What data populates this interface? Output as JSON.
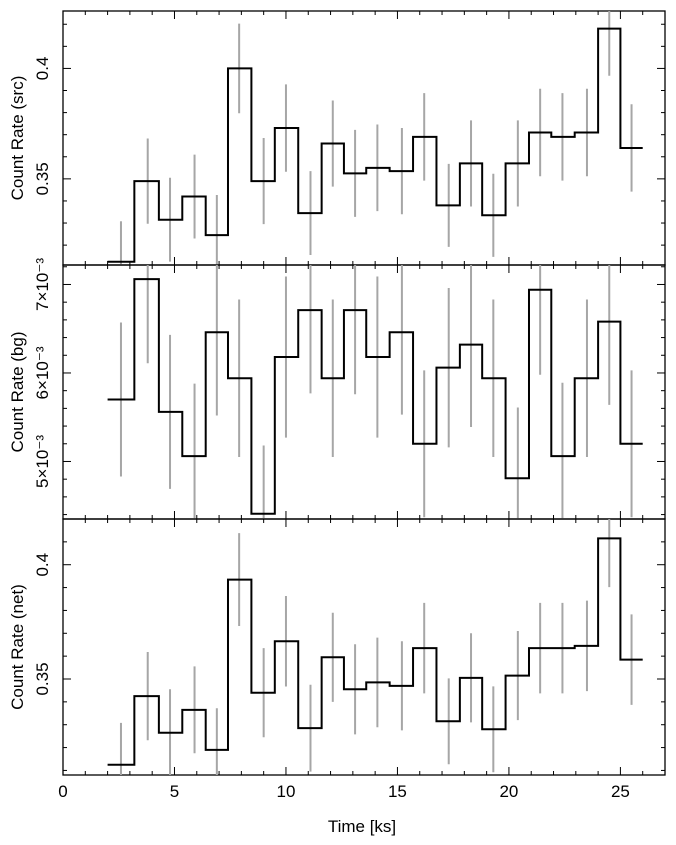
{
  "chart_data": [
    {
      "type": "line",
      "style": "step",
      "ylabel": "Count Rate (src)",
      "xlim": [
        0,
        27
      ],
      "ylim": [
        0.311,
        0.426
      ],
      "yticks": [
        0.35,
        0.4
      ],
      "ytick_labels": [
        "0.35",
        "0.4"
      ],
      "x": [
        2.6,
        3.8,
        4.8,
        5.9,
        6.9,
        7.9,
        9.0,
        10.0,
        11.1,
        12.1,
        13.1,
        14.1,
        15.2,
        16.2,
        17.3,
        18.3,
        19.3,
        20.4,
        21.4,
        22.4,
        23.5,
        24.5,
        25.5
      ],
      "values": [
        0.3125,
        0.349,
        0.3315,
        0.342,
        0.3245,
        0.4,
        0.349,
        0.373,
        0.3345,
        0.366,
        0.3525,
        0.355,
        0.3535,
        0.369,
        0.338,
        0.357,
        0.3335,
        0.357,
        0.371,
        0.369,
        0.371,
        0.418,
        0.364
      ],
      "errors": [
        0.0183,
        0.0193,
        0.019,
        0.019,
        0.0182,
        0.0203,
        0.0195,
        0.0198,
        0.019,
        0.0195,
        0.0197,
        0.0196,
        0.0195,
        0.0198,
        0.0188,
        0.0195,
        0.0188,
        0.0195,
        0.0198,
        0.0198,
        0.0198,
        0.0213,
        0.0198
      ]
    },
    {
      "type": "line",
      "style": "step",
      "ylabel": "Count Rate (bg)",
      "xlim": [
        0,
        27
      ],
      "ylim": [
        0.00435,
        0.00722
      ],
      "yticks": [
        0.005,
        0.006,
        0.007
      ],
      "ytick_labels": [
        "5×10⁻³",
        "6×10⁻³",
        "7×10⁻³"
      ],
      "x": [
        2.6,
        3.8,
        4.8,
        5.9,
        6.9,
        7.9,
        9.0,
        10.0,
        11.1,
        12.1,
        13.1,
        14.1,
        15.2,
        16.2,
        17.3,
        18.3,
        19.3,
        20.4,
        21.4,
        22.4,
        23.5,
        24.5,
        25.5
      ],
      "values": [
        0.0057,
        0.00706,
        0.00556,
        0.00506,
        0.00646,
        0.00594,
        0.00441,
        0.00618,
        0.00671,
        0.00594,
        0.00671,
        0.00618,
        0.00646,
        0.0052,
        0.00606,
        0.00632,
        0.00594,
        0.00481,
        0.00694,
        0.00506,
        0.00594,
        0.00658,
        0.0052
      ],
      "errors": [
        0.00087,
        0.00095,
        0.00087,
        0.00082,
        0.00094,
        0.00089,
        0.00077,
        0.00091,
        0.00094,
        0.00089,
        0.00095,
        0.00091,
        0.00093,
        0.00083,
        0.0009,
        0.00093,
        0.00089,
        0.0008,
        0.00096,
        0.00083,
        0.00089,
        0.00094,
        0.00083
      ]
    },
    {
      "type": "line",
      "style": "step",
      "ylabel": "Count Rate (net)",
      "xlabel": "Time [ks]",
      "xlim": [
        0,
        27
      ],
      "xticks": [
        0,
        5,
        10,
        15,
        20,
        25
      ],
      "xtick_labels": [
        "0",
        "5",
        "10",
        "15",
        "20",
        "25"
      ],
      "ylim": [
        0.308,
        0.42
      ],
      "yticks": [
        0.35,
        0.4
      ],
      "ytick_labels": [
        "0.35",
        "0.4"
      ],
      "x": [
        2.6,
        3.8,
        4.8,
        5.9,
        6.9,
        7.9,
        9.0,
        10.0,
        11.1,
        12.1,
        13.1,
        14.1,
        15.2,
        16.2,
        17.3,
        18.3,
        19.3,
        20.4,
        21.4,
        22.4,
        23.5,
        24.5,
        25.5
      ],
      "values": [
        0.3125,
        0.3425,
        0.3265,
        0.3365,
        0.319,
        0.3935,
        0.344,
        0.3665,
        0.3285,
        0.3595,
        0.3455,
        0.3485,
        0.347,
        0.3635,
        0.3315,
        0.3505,
        0.328,
        0.3515,
        0.3635,
        0.3635,
        0.3645,
        0.4115,
        0.3585
      ],
      "errors": [
        0.0183,
        0.0193,
        0.019,
        0.019,
        0.0182,
        0.0203,
        0.0195,
        0.0198,
        0.019,
        0.0195,
        0.0197,
        0.0196,
        0.0195,
        0.0198,
        0.0188,
        0.0195,
        0.0188,
        0.0195,
        0.0198,
        0.0198,
        0.0198,
        0.0213,
        0.0198
      ]
    }
  ]
}
